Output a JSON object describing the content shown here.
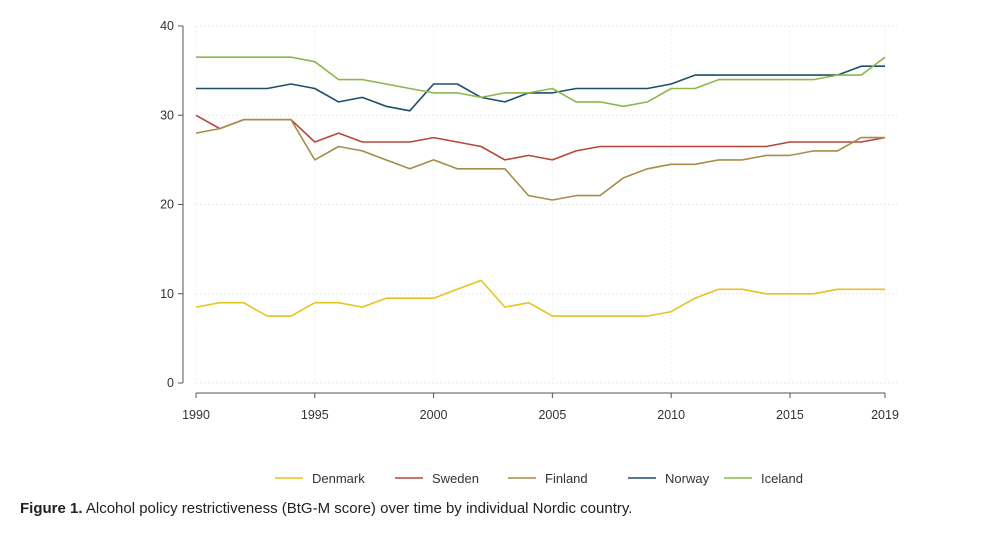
{
  "chart_data": {
    "type": "line",
    "title": "",
    "xlabel": "",
    "ylabel": "",
    "xlim": [
      1990,
      2019
    ],
    "ylim": [
      0,
      40
    ],
    "xticks": [
      1990,
      1995,
      2000,
      2005,
      2010,
      2015,
      2019
    ],
    "yticks": [
      0,
      10,
      20,
      30,
      40
    ],
    "grid": true,
    "legend_position": "bottom",
    "x": [
      1990,
      1991,
      1992,
      1993,
      1994,
      1995,
      1996,
      1997,
      1998,
      1999,
      2000,
      2001,
      2002,
      2003,
      2004,
      2005,
      2006,
      2007,
      2008,
      2009,
      2010,
      2011,
      2012,
      2013,
      2014,
      2015,
      2016,
      2017,
      2018,
      2019
    ],
    "series": [
      {
        "name": "Denmark",
        "color": "#e8c21e",
        "values": [
          8.5,
          9,
          9,
          7.5,
          7.5,
          9,
          9,
          8.5,
          9.5,
          9.5,
          9.5,
          10.5,
          11.5,
          8.5,
          9,
          7.5,
          7.5,
          7.5,
          7.5,
          7.5,
          8,
          9.5,
          10.5,
          10.5,
          10,
          10,
          10,
          10.5,
          10.5,
          10.5
        ]
      },
      {
        "name": "Sweden",
        "color": "#b5473a",
        "values": [
          30,
          28.5,
          29.5,
          29.5,
          29.5,
          27,
          28,
          27,
          27,
          27,
          27.5,
          27,
          26.5,
          25,
          25.5,
          25,
          26,
          26.5,
          26.5,
          26.5,
          26.5,
          26.5,
          26.5,
          26.5,
          26.5,
          27,
          27,
          27,
          27,
          27.5
        ]
      },
      {
        "name": "Finland",
        "color": "#a88b48",
        "values": [
          28,
          28.5,
          29.5,
          29.5,
          29.5,
          25,
          26.5,
          26,
          25,
          24,
          25,
          24,
          24,
          24,
          21,
          20.5,
          21,
          21,
          23,
          24,
          24.5,
          24.5,
          25,
          25,
          25.5,
          25.5,
          26,
          26,
          27.5,
          27.5
        ]
      },
      {
        "name": "Norway",
        "color": "#1f4e6b",
        "values": [
          33,
          33,
          33,
          33,
          33.5,
          33,
          31.5,
          32,
          31,
          30.5,
          33.5,
          33.5,
          32,
          31.5,
          32.5,
          32.5,
          33,
          33,
          33,
          33,
          33.5,
          34.5,
          34.5,
          34.5,
          34.5,
          34.5,
          34.5,
          34.5,
          35.5,
          35.5
        ]
      },
      {
        "name": "Iceland",
        "color": "#8ab84a",
        "values": [
          36.5,
          36.5,
          36.5,
          36.5,
          36.5,
          36,
          34,
          34,
          33.5,
          33,
          32.5,
          32.5,
          32,
          32.5,
          32.5,
          33,
          31.5,
          31.5,
          31,
          31.5,
          33,
          33,
          34,
          34,
          34,
          34,
          34,
          34.5,
          34.5,
          36.5
        ]
      }
    ]
  },
  "caption": {
    "label": "Figure 1.",
    "text": " Alcohol policy restrictiveness (BtG-M score) over time by individual Nordic country."
  }
}
